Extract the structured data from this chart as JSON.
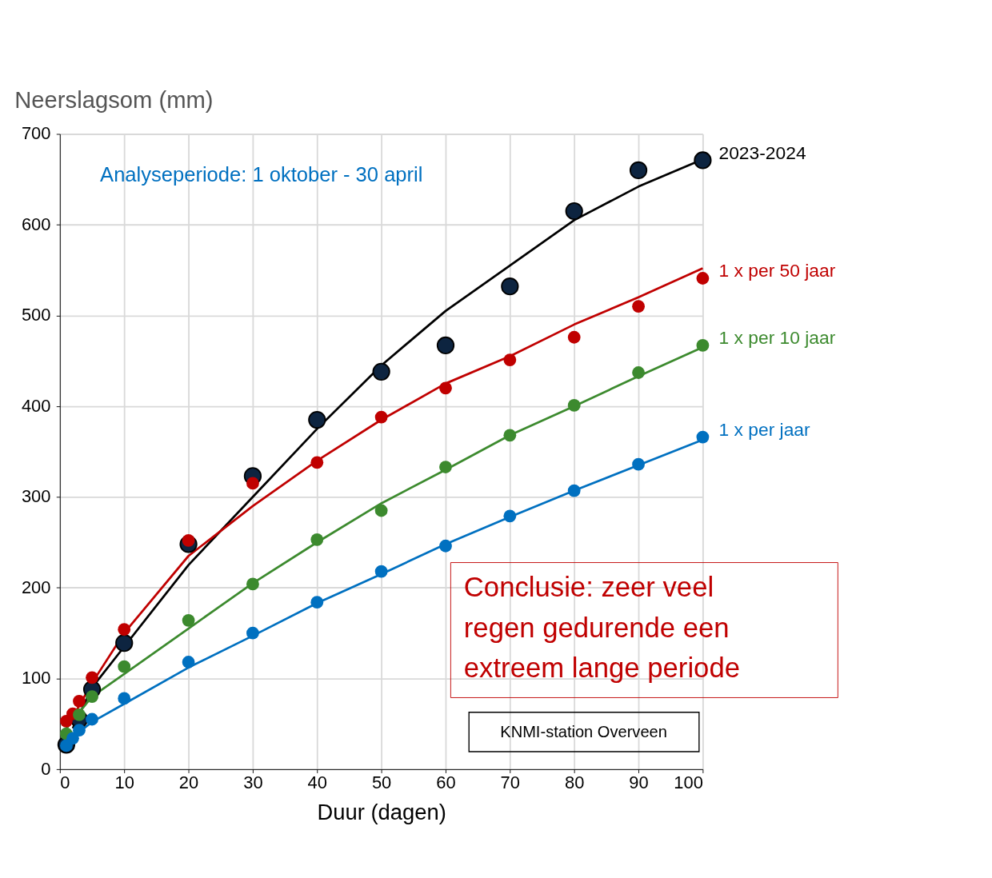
{
  "chart_data": {
    "type": "scatter",
    "xlabel": "Duur (dagen)",
    "ylabel": "Neerslagsom (mm)",
    "xlim": [
      0,
      100
    ],
    "xticks": [
      0,
      10,
      20,
      30,
      40,
      50,
      60,
      70,
      80,
      90,
      100
    ],
    "ylim": [
      0,
      700
    ],
    "yticks": [
      0,
      100,
      200,
      300,
      400,
      500,
      600,
      700
    ],
    "grid": true,
    "legend": false,
    "marker": "circle",
    "series": [
      {
        "type": "line",
        "marker": "none",
        "color": "#000000",
        "x": [
          2,
          5,
          10,
          20,
          30,
          40,
          50,
          60,
          70,
          80,
          90,
          100
        ],
        "values": [
          45,
          90,
          135,
          225,
          300,
          375,
          445,
          505,
          555,
          605,
          642,
          672
        ]
      },
      {
        "type": "line",
        "marker": "none",
        "color": "#c00000",
        "x": [
          1,
          5,
          10,
          20,
          30,
          40,
          50,
          60,
          70,
          80,
          90,
          100
        ],
        "values": [
          45,
          95,
          150,
          235,
          290,
          340,
          385,
          425,
          455,
          490,
          520,
          552
        ]
      },
      {
        "type": "line",
        "marker": "none",
        "color": "#3c8a2e",
        "x": [
          1,
          5,
          10,
          20,
          30,
          40,
          50,
          60,
          70,
          80,
          90,
          100
        ],
        "values": [
          45,
          80,
          105,
          155,
          205,
          250,
          293,
          330,
          368,
          400,
          433,
          465
        ]
      },
      {
        "type": "line",
        "marker": "none",
        "color": "#0070c0",
        "x": [
          1,
          5,
          10,
          20,
          30,
          40,
          50,
          60,
          70,
          80,
          90,
          100
        ],
        "values": [
          30,
          52,
          72,
          112,
          147,
          183,
          215,
          248,
          278,
          307,
          335,
          363
        ]
      },
      {
        "name": "2023-2024",
        "color": "#0d2440",
        "x": [
          1,
          3,
          5,
          10,
          20,
          30,
          40,
          50,
          60,
          70,
          80,
          90,
          100
        ],
        "values": [
          27,
          55,
          88,
          139,
          248,
          323,
          385,
          438,
          467,
          532,
          615,
          660,
          671
        ]
      },
      {
        "name": "1 x per 50 jaar",
        "color": "#c00000",
        "x": [
          1,
          2,
          3,
          5,
          10,
          20,
          30,
          40,
          50,
          60,
          70,
          80,
          90,
          100
        ],
        "values": [
          53,
          61,
          75,
          101,
          154,
          252,
          315,
          338,
          388,
          420,
          451,
          476,
          510,
          541
        ]
      },
      {
        "name": "1 x per 10 jaar",
        "color": "#3c8a2e",
        "x": [
          1,
          3,
          5,
          10,
          20,
          30,
          40,
          50,
          60,
          70,
          80,
          90,
          100
        ],
        "values": [
          39,
          60,
          80,
          113,
          164,
          204,
          253,
          285,
          333,
          368,
          401,
          437,
          467
        ]
      },
      {
        "name": "1 x per jaar",
        "color": "#0070c0",
        "x": [
          1,
          2,
          3,
          5,
          10,
          20,
          30,
          40,
          50,
          60,
          70,
          80,
          90,
          100
        ],
        "values": [
          26,
          34,
          43,
          55,
          78,
          118,
          150,
          184,
          218,
          246,
          279,
          307,
          336,
          366
        ]
      }
    ],
    "annotations": [
      "Analyseperiode: 1 oktober - 30 april",
      "Conclusie: zeer veel regen gedurende een extreem lange periode",
      "KNMI-station Overveen"
    ]
  }
}
